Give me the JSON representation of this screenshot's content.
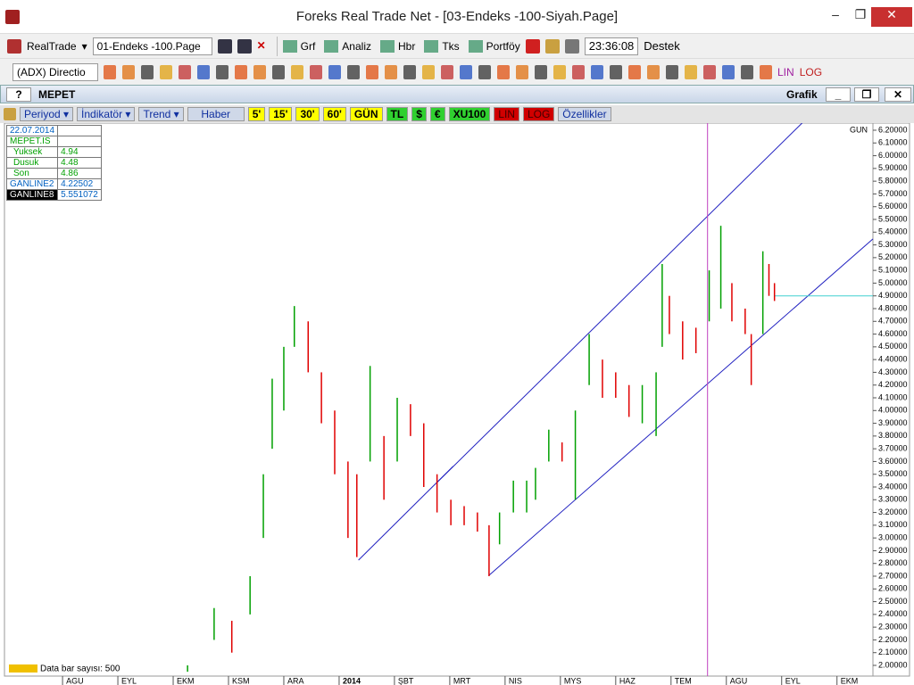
{
  "window": {
    "title": "Foreks Real Trade Net - [03-Endeks -100-Siyah.Page]"
  },
  "toolbar1": {
    "realtrade": "RealTrade",
    "page": "01-Endeks -100.Page",
    "menus": [
      "Grf",
      "Analiz",
      "Hbr",
      "Tks",
      "Portföy"
    ],
    "clock": "23:36:08",
    "support": "Destek"
  },
  "toolbar2": {
    "indicator": "(ADX) Directio",
    "lin": "LIN",
    "log": "LOG"
  },
  "panel": {
    "help": "?",
    "symbol": "MEPET",
    "name": "Grafik"
  },
  "chart_toolbar": {
    "menus": [
      "Periyod",
      "İndikatör",
      "Trend"
    ],
    "news": "Haber",
    "periods": [
      "5'",
      "15'",
      "30'",
      "60'",
      "GÜN"
    ],
    "currencies": [
      "TL",
      "$",
      "€"
    ],
    "index": "XU100",
    "lin": "LIN",
    "log": "LOG",
    "settings": "Özellikler"
  },
  "info_box": {
    "date": "22.07.2014",
    "symbol": "MEPET.IS",
    "rows": [
      [
        "Yuksek",
        "4.94"
      ],
      [
        "Dusuk",
        "4.48"
      ],
      [
        "Son",
        "4.86"
      ],
      [
        "GANLINE2",
        "4.22502"
      ],
      [
        "GANLINE8",
        "5.551072"
      ]
    ]
  },
  "chart_data": {
    "type": "range_bar",
    "period_label": "GUN",
    "footer": "Data bar sayısı: 500",
    "x": [
      2.26,
      2.74,
      3.06,
      3.39,
      3.63,
      3.79,
      4.0,
      4.19,
      4.44,
      4.68,
      4.92,
      5.16,
      5.32,
      5.56,
      5.81,
      6.05,
      6.29,
      6.53,
      6.77,
      7.02,
      7.26,
      7.5,
      7.71,
      7.9,
      8.15,
      8.39,
      8.55,
      8.79,
      9.03,
      9.27,
      9.52,
      9.76,
      10.0,
      10.24,
      10.48,
      10.73,
      10.84,
      10.97,
      11.21,
      11.45,
      11.69,
      11.9,
      12.1,
      12.34,
      12.45,
      12.66,
      12.77,
      12.87
    ],
    "high": [
      2.0,
      2.45,
      2.35,
      2.7,
      3.5,
      4.25,
      4.5,
      4.82,
      4.7,
      4.3,
      4.0,
      3.6,
      3.5,
      4.35,
      3.8,
      4.1,
      4.05,
      3.9,
      3.5,
      3.3,
      3.25,
      3.2,
      3.1,
      3.2,
      3.45,
      3.45,
      3.55,
      3.85,
      3.75,
      4.0,
      4.6,
      4.4,
      4.3,
      4.2,
      4.2,
      4.3,
      5.15,
      4.9,
      4.7,
      4.65,
      5.1,
      5.45,
      5.0,
      4.8,
      4.6,
      5.25,
      5.15,
      5.0
    ],
    "low": [
      1.95,
      2.2,
      2.1,
      2.4,
      3.0,
      3.7,
      4.0,
      4.5,
      4.3,
      3.9,
      3.5,
      3.0,
      2.85,
      3.6,
      3.3,
      3.6,
      3.8,
      3.4,
      3.2,
      3.1,
      3.1,
      3.05,
      2.7,
      2.95,
      3.2,
      3.2,
      3.3,
      3.6,
      3.6,
      3.3,
      4.2,
      4.1,
      4.1,
      3.95,
      3.9,
      3.8,
      4.5,
      4.6,
      4.4,
      4.45,
      4.7,
      4.8,
      4.7,
      4.6,
      4.2,
      4.6,
      4.9,
      4.86
    ],
    "up_color": "#00a000",
    "down_color": "#e00000",
    "lines": [
      {
        "color": "#2020c0",
        "x": [
          6.77,
          13.39
        ],
        "y": [
          3.436,
          6.265
        ]
      },
      {
        "color": "#2020c0",
        "x": [
          7.71,
          14.65
        ],
        "y": [
          2.707,
          5.347
        ]
      },
      {
        "color": "#2020c0",
        "x": [
          5.35,
          7.06
        ],
        "y": [
          2.826,
          3.562
        ]
      },
      {
        "color": "#40d0d0",
        "x": [
          12.87,
          14.65
        ],
        "y": [
          4.9,
          4.9
        ]
      },
      {
        "color": "#c040c0",
        "x": [
          11.66,
          11.66
        ],
        "y": [
          1.916,
          6.256
        ]
      }
    ],
    "xlim": [
      -1.05,
      14.65
    ],
    "ylim": [
      1.916,
      6.256
    ],
    "xticks": [
      {
        "value": 0,
        "label": "AGU"
      },
      {
        "value": 1,
        "label": "EYL"
      },
      {
        "value": 2,
        "label": "EKM"
      },
      {
        "value": 3,
        "label": "KSM"
      },
      {
        "value": 4,
        "label": "ARA"
      },
      {
        "value": 5,
        "label": "2014"
      },
      {
        "value": 6,
        "label": "ŞBT"
      },
      {
        "value": 7,
        "label": "MRT"
      },
      {
        "value": 8,
        "label": "NIS"
      },
      {
        "value": 9,
        "label": "MYS"
      },
      {
        "value": 10,
        "label": "HAZ"
      },
      {
        "value": 11,
        "label": "TEM"
      },
      {
        "value": 12,
        "label": "AGU"
      },
      {
        "value": 13,
        "label": "EYL"
      },
      {
        "value": 14,
        "label": "EKM"
      }
    ],
    "yticks": [
      {
        "value": 2.0,
        "label": "2.00000"
      },
      {
        "value": 2.1,
        "label": "2.10000"
      },
      {
        "value": 2.2,
        "label": "2.20000"
      },
      {
        "value": 2.3,
        "label": "2.30000"
      },
      {
        "value": 2.4,
        "label": "2.40000"
      },
      {
        "value": 2.5,
        "label": "2.50000"
      },
      {
        "value": 2.6,
        "label": "2.60000"
      },
      {
        "value": 2.7,
        "label": "2.70000"
      },
      {
        "value": 2.8,
        "label": "2.80000"
      },
      {
        "value": 2.9,
        "label": "2.90000"
      },
      {
        "value": 3.0,
        "label": "3.00000"
      },
      {
        "value": 3.1,
        "label": "3.10000"
      },
      {
        "value": 3.2,
        "label": "3.20000"
      },
      {
        "value": 3.3,
        "label": "3.30000"
      },
      {
        "value": 3.4,
        "label": "3.40000"
      },
      {
        "value": 3.5,
        "label": "3.50000"
      },
      {
        "value": 3.6,
        "label": "3.60000"
      },
      {
        "value": 3.7,
        "label": "3.70000"
      },
      {
        "value": 3.8,
        "label": "3.80000"
      },
      {
        "value": 3.9,
        "label": "3.90000"
      },
      {
        "value": 4.0,
        "label": "4.00000"
      },
      {
        "value": 4.1,
        "label": "4.10000"
      },
      {
        "value": 4.2,
        "label": "4.20000"
      },
      {
        "value": 4.3,
        "label": "4.30000"
      },
      {
        "value": 4.4,
        "label": "4.40000"
      },
      {
        "value": 4.5,
        "label": "4.50000"
      },
      {
        "value": 4.6,
        "label": "4.60000"
      },
      {
        "value": 4.7,
        "label": "4.70000"
      },
      {
        "value": 4.8,
        "label": "4.80000"
      },
      {
        "value": 4.9,
        "label": "4.90000"
      },
      {
        "value": 5.0,
        "label": "5.00000"
      },
      {
        "value": 5.1,
        "label": "5.10000"
      },
      {
        "value": 5.2,
        "label": "5.20000"
      },
      {
        "value": 5.3,
        "label": "5.30000"
      },
      {
        "value": 5.4,
        "label": "5.40000"
      },
      {
        "value": 5.5,
        "label": "5.50000"
      },
      {
        "value": 5.6,
        "label": "5.60000"
      },
      {
        "value": 5.7,
        "label": "5.70000"
      },
      {
        "value": 5.8,
        "label": "5.80000"
      },
      {
        "value": 5.9,
        "label": "5.90000"
      },
      {
        "value": 6.0,
        "label": "6.00000"
      },
      {
        "value": 6.1,
        "label": "6.10000"
      },
      {
        "value": 6.2,
        "label": "6.20000"
      }
    ]
  }
}
